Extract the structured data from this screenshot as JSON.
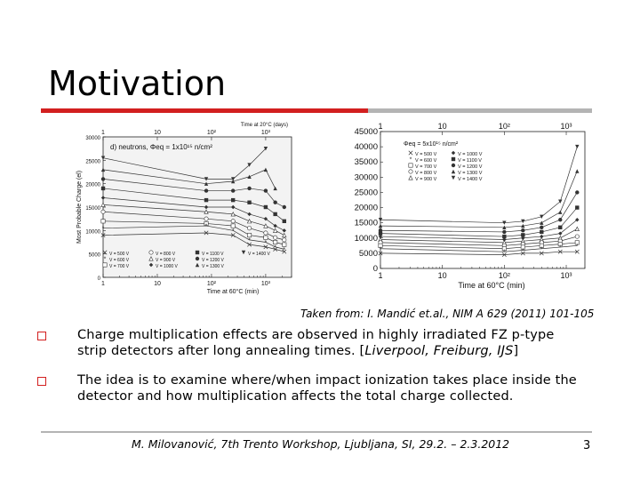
{
  "slide": {
    "title": "Motivation",
    "caption": "Taken from: I. Mandić et.al., NIM A 629 (2011) 101-105",
    "bullets": [
      {
        "text_a": "Charge multiplication effects are observed in highly irradiated FZ p-type",
        "text_b": "strip detectors after long annealing times. [",
        "text_italic": "Liverpool, Freiburg, IJS",
        "text_end": "]"
      },
      {
        "text_a": "The idea is to examine where/when impact ionization takes place inside the",
        "text_b": "detector and how multiplication affects the total charge collected."
      }
    ],
    "footer": "M. Milovanović, 7th Trento Workshop, Ljubljana, SI, 29.2. – 2.3.2012",
    "page_number": "3"
  },
  "chart_data": [
    {
      "type": "line",
      "panel_label": "d) neutrons, Φeq = 1x10¹⁵ n/cm²",
      "xlabel": "Time at 60°C (min)",
      "top_xlabel": "Time at 20°C (days)",
      "ylabel": "Most Probable Charge (el)",
      "x_scale": "log",
      "xlim": [
        1,
        3000
      ],
      "ylim": [
        0,
        30000
      ],
      "x_ticks": [
        "1",
        "10",
        "10²",
        "10³"
      ],
      "top_x_ticks": [
        "1",
        "10",
        "10²",
        "10³"
      ],
      "y_ticks": [
        "0",
        "5000",
        "10000",
        "15000",
        "20000",
        "25000",
        "30000"
      ],
      "x": [
        1,
        80,
        250,
        500,
        1000,
        1500,
        2200
      ],
      "series": [
        {
          "name": "V = 1400 V",
          "values": [
            25500,
            21000,
            21000,
            24000,
            27500,
            null,
            null
          ]
        },
        {
          "name": "V = 1300 V",
          "values": [
            23000,
            20000,
            20500,
            21500,
            23000,
            19000,
            null
          ]
        },
        {
          "name": "V = 1200 V",
          "values": [
            21000,
            18500,
            18500,
            19000,
            18500,
            16000,
            15000
          ]
        },
        {
          "name": "V = 1100 V",
          "values": [
            19000,
            16500,
            16500,
            16000,
            15000,
            13500,
            12000
          ]
        },
        {
          "name": "V = 1000 V",
          "values": [
            17000,
            15000,
            15000,
            13500,
            12500,
            11000,
            10000
          ]
        },
        {
          "name": "V = 900 V",
          "values": [
            15500,
            14000,
            13500,
            12000,
            11000,
            10000,
            9000
          ]
        },
        {
          "name": "V = 800 V",
          "values": [
            14000,
            12500,
            12000,
            10500,
            9500,
            8500,
            8000
          ]
        },
        {
          "name": "V = 700 V",
          "values": [
            12000,
            11500,
            11000,
            9000,
            8500,
            7500,
            7000
          ]
        },
        {
          "name": "V = 600 V",
          "values": [
            10500,
            11000,
            10000,
            8000,
            7500,
            6500,
            6000
          ]
        },
        {
          "name": "V = 500 V",
          "values": [
            9000,
            9500,
            9000,
            7000,
            6500,
            6000,
            5500
          ]
        }
      ],
      "legend": "bottom"
    },
    {
      "type": "line",
      "panel_label": "Φeq = 5x10¹⁵ n/cm²",
      "xlabel": "Time at 60°C (min)",
      "x_scale": "log",
      "xlim": [
        1,
        2000
      ],
      "ylim": [
        0,
        45000
      ],
      "x_ticks": [
        "1",
        "10",
        "10²",
        "10³"
      ],
      "top_x_ticks": [
        "1",
        "10",
        "10²",
        "10³"
      ],
      "y_ticks": [
        "0",
        "5000",
        "10000",
        "15000",
        "20000",
        "25000",
        "30000",
        "35000",
        "40000",
        "45000"
      ],
      "x": [
        1,
        100,
        200,
        400,
        800,
        1500
      ],
      "series": [
        {
          "name": "V = 1400 V",
          "values": [
            16000,
            15000,
            15500,
            17000,
            22000,
            40000
          ]
        },
        {
          "name": "V = 1300 V",
          "values": [
            14000,
            13500,
            14000,
            15000,
            18500,
            32000
          ]
        },
        {
          "name": "V = 1200 V",
          "values": [
            12500,
            12000,
            12500,
            13500,
            16000,
            25000
          ]
        },
        {
          "name": "V = 1100 V",
          "values": [
            11500,
            10500,
            11000,
            12000,
            13500,
            20000
          ]
        },
        {
          "name": "V = 1000 V",
          "values": [
            10500,
            9500,
            10000,
            10500,
            11500,
            16000
          ]
        },
        {
          "name": "V = 900 V",
          "values": [
            9500,
            8500,
            9000,
            9500,
            10000,
            13000
          ]
        },
        {
          "name": "V = 800 V",
          "values": [
            8500,
            7500,
            8000,
            8500,
            9000,
            10500
          ]
        },
        {
          "name": "V = 700 V",
          "values": [
            7500,
            6500,
            7000,
            7500,
            8000,
            8500
          ]
        },
        {
          "name": "V = 600 V",
          "values": [
            6500,
            5500,
            6000,
            6500,
            7000,
            7500
          ]
        },
        {
          "name": "V = 500 V",
          "values": [
            5000,
            4500,
            5000,
            5000,
            5500,
            5500
          ]
        }
      ],
      "legend": "top-left"
    }
  ],
  "colors": {
    "accent": "#d21f1f",
    "rule": "#b4b4b4"
  }
}
